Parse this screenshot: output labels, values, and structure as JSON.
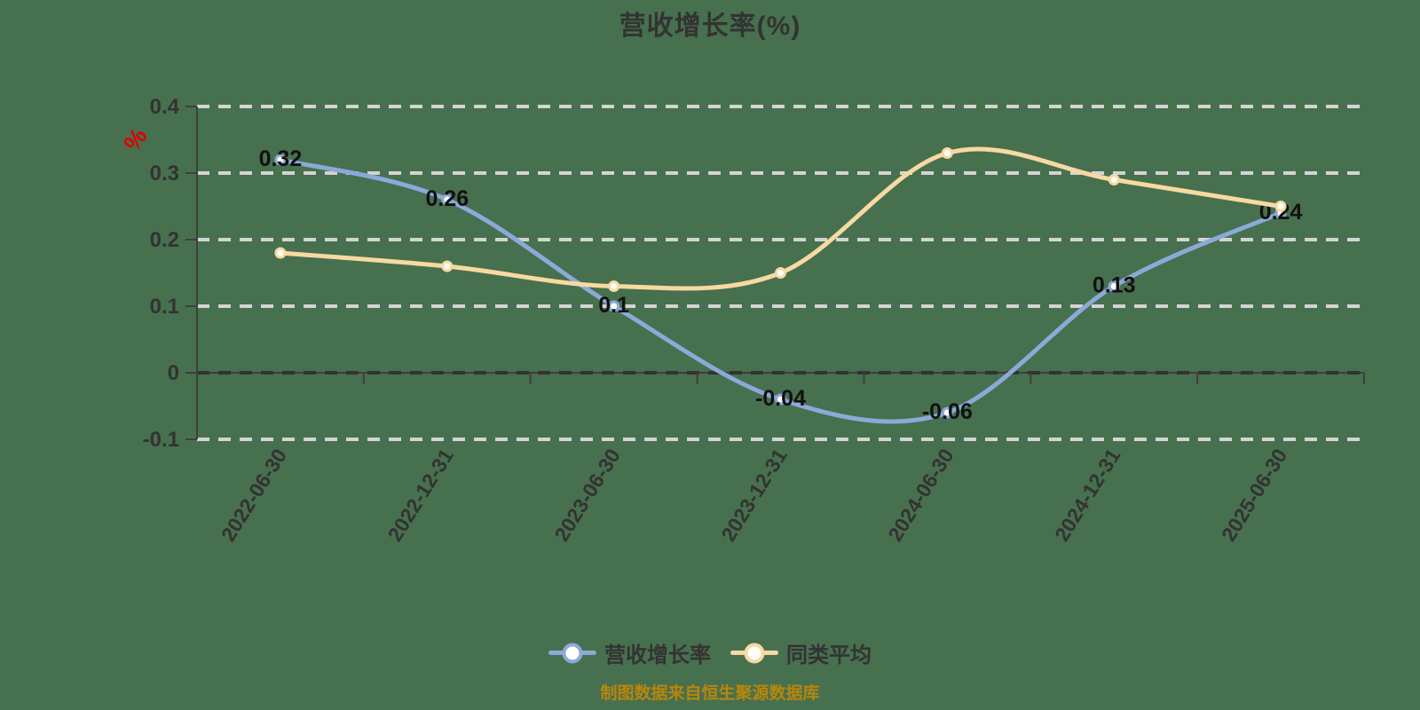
{
  "title": "营收增长率(%)",
  "y_axis_unit": "%",
  "source_note": "制图数据来自恒生聚源数据库",
  "colors": {
    "background": "#47704f",
    "title_text": "#333333",
    "unit_label": "#dd0000",
    "axis": "#3f3f3f",
    "axis_label": "#333333",
    "grid_dash_light": "#d4d4d4",
    "grid_dash_zero": "#333333",
    "series_main": "#8ca9d8",
    "series_avg": "#f7d9a2",
    "point_label": "#111111",
    "legend_text": "#333333",
    "source_text": "#b8860b"
  },
  "legend": [
    {
      "label": "营收增长率",
      "color": "#8ca9d8"
    },
    {
      "label": "同类平均",
      "color": "#f7d9a2"
    }
  ],
  "chart_data": {
    "type": "line",
    "categories": [
      "2022-06-30",
      "2022-12-31",
      "2023-06-30",
      "2023-12-31",
      "2024-06-30",
      "2024-12-31",
      "2025-06-30"
    ],
    "series": [
      {
        "name": "营收增长率",
        "color": "#8ca9d8",
        "values": [
          0.32,
          0.26,
          0.1,
          -0.04,
          -0.06,
          0.13,
          0.24
        ],
        "point_labels": [
          "0.32",
          "0.26",
          "0.1",
          "-0.04",
          "-0.06",
          "0.13",
          "0.24"
        ],
        "show_labels": true
      },
      {
        "name": "同类平均",
        "color": "#f7d9a2",
        "values": [
          0.18,
          0.16,
          0.13,
          0.15,
          0.33,
          0.29,
          0.25
        ],
        "point_labels": [],
        "show_labels": false
      }
    ],
    "title": "营收增长率(%)",
    "xlabel": "",
    "ylabel": "%",
    "ylim": [
      -0.1,
      0.4
    ],
    "yticks": [
      0.4,
      0.3,
      0.2,
      0.1,
      0,
      -0.1
    ],
    "ytick_labels": [
      "0.4",
      "0.3",
      "0.2",
      "0.1",
      "0",
      "-0.1"
    ],
    "grid": true,
    "legend_position": "bottom"
  }
}
